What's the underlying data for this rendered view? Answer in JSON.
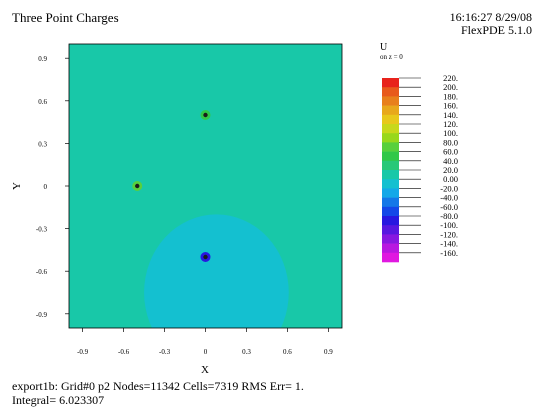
{
  "header": {
    "title": "Three Point Charges",
    "timestamp": "16:16:27 8/29/08",
    "software": "FlexPDE 5.1.0"
  },
  "footer": {
    "line1": "export1b:  Grid#0  p2  Nodes=11342 Cells=7319 RMS Err= 1.",
    "line2": "Integral=  6.023307"
  },
  "legend": {
    "variable": "U",
    "subtitle": "on z = 0",
    "labels": [
      "220.",
      "200.",
      "180.",
      "160.",
      "140.",
      "120.",
      "100.",
      "80.0",
      "60.0",
      "40.0",
      "20.0",
      "0.00",
      "-20.0",
      "-40.0",
      "-60.0",
      "-80.0",
      "-100.",
      "-120.",
      "-140.",
      "-160."
    ],
    "colors": [
      "#e8231c",
      "#e85a1c",
      "#e8801c",
      "#e8a81c",
      "#e8c81c",
      "#c8d81c",
      "#98d81c",
      "#58d03c",
      "#30c848",
      "#28c878",
      "#18c8a8",
      "#14c0d0",
      "#14a8e8",
      "#1478e8",
      "#1448e8",
      "#2818e0",
      "#5818e0",
      "#8818e0",
      "#b818e0",
      "#e018e0"
    ]
  },
  "chart_data": {
    "type": "heatmap",
    "title": "Three Point Charges",
    "xlabel": "X",
    "ylabel": "Y",
    "xlim": [
      -1.0,
      1.0
    ],
    "ylim": [
      -1.0,
      1.0
    ],
    "xticks": [
      "-0.9",
      "-0.6",
      "-0.3",
      "0",
      "0.3",
      "0.6",
      "0.9"
    ],
    "yticks": [
      "0.9",
      "0.6",
      "0.3",
      "0",
      "-0.3",
      "-0.6",
      "-0.9"
    ],
    "background_value_color": "#18c8a8",
    "regions": [
      {
        "type": "ellipse",
        "cx": 0.08,
        "cy": -0.75,
        "rx": 0.53,
        "ry": 0.55,
        "color": "#14c0d0"
      }
    ],
    "charges": [
      {
        "x": 0.0,
        "y": 0.5,
        "color": "#30c848"
      },
      {
        "x": -0.5,
        "y": 0.0,
        "color": "#58d03c"
      },
      {
        "x": 0.0,
        "y": -0.5,
        "color": "#2818e0"
      }
    ],
    "grid": false
  }
}
